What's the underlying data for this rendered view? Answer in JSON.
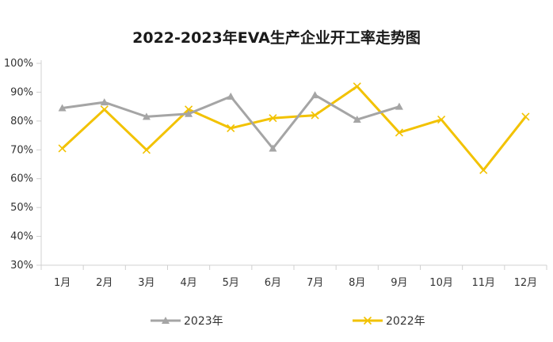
{
  "chart_data": {
    "type": "line",
    "title": "2022-2023年EVA生产企业开工率走势图",
    "categories": [
      "1月",
      "2月",
      "3月",
      "4月",
      "5月",
      "6月",
      "7月",
      "8月",
      "9月",
      "10月",
      "11月",
      "12月"
    ],
    "yticks": [
      "30%",
      "40%",
      "50%",
      "60%",
      "70%",
      "80%",
      "90%",
      "100%"
    ],
    "ylim": [
      30,
      100
    ],
    "grid": false,
    "legend_position": "bottom",
    "series": [
      {
        "name": "2023年",
        "color": "#a5a5a5",
        "marker": "triangle",
        "values": [
          84.5,
          86.5,
          81.5,
          82.5,
          88.5,
          70.5,
          89,
          80.5,
          85,
          null,
          null,
          null
        ]
      },
      {
        "name": "2022年",
        "color": "#f2c200",
        "marker": "x",
        "values": [
          70.5,
          84,
          70,
          84,
          77.5,
          81,
          82,
          92,
          76,
          80.5,
          63,
          81.5
        ]
      }
    ]
  }
}
